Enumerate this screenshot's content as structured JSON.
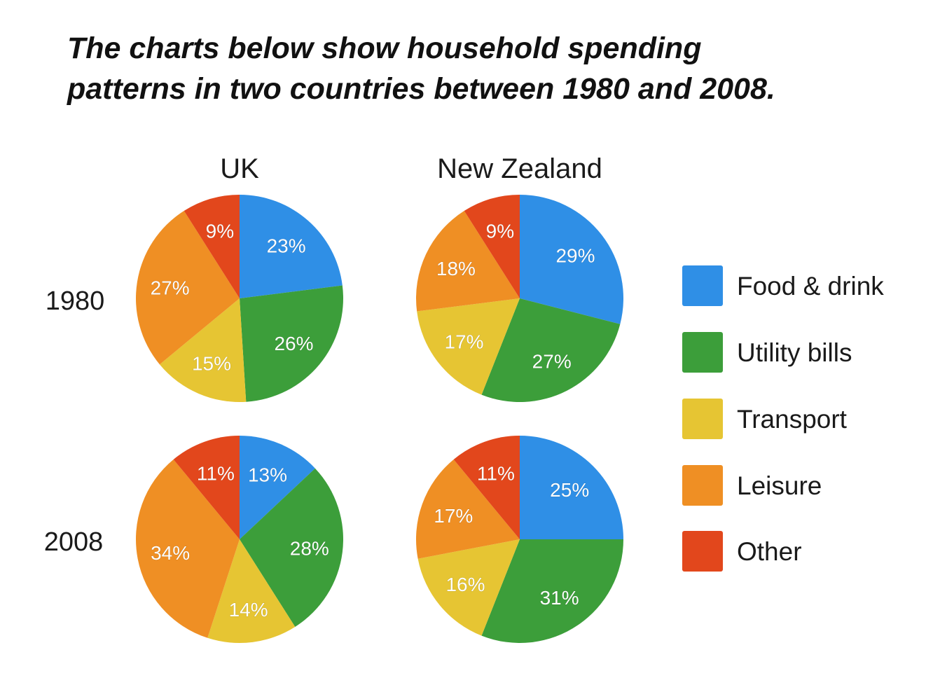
{
  "title_line1": "The charts below show household spending",
  "title_line2": "patterns in two countries between 1980 and 2008.",
  "chart_data": {
    "type": "pie",
    "columns": [
      "UK",
      "New Zealand"
    ],
    "rows": [
      "1980",
      "2008"
    ],
    "categories": [
      "Food & drink",
      "Utility bills",
      "Transport",
      "Leisure",
      "Other"
    ],
    "colors": {
      "Food & drink": "#2f8fe6",
      "Utility bills": "#3c9e3a",
      "Transport": "#e6c533",
      "Leisure": "#ef8f24",
      "Other": "#e2471c"
    },
    "pies": [
      {
        "country": "UK",
        "year": "1980",
        "values": [
          23,
          26,
          15,
          27,
          9
        ]
      },
      {
        "country": "New Zealand",
        "year": "1980",
        "values": [
          29,
          27,
          17,
          18,
          9
        ]
      },
      {
        "country": "UK",
        "year": "2008",
        "values": [
          13,
          28,
          14,
          34,
          11
        ]
      },
      {
        "country": "New Zealand",
        "year": "2008",
        "values": [
          25,
          31,
          16,
          17,
          11
        ]
      }
    ],
    "value_suffix": "%",
    "legend": "right"
  }
}
